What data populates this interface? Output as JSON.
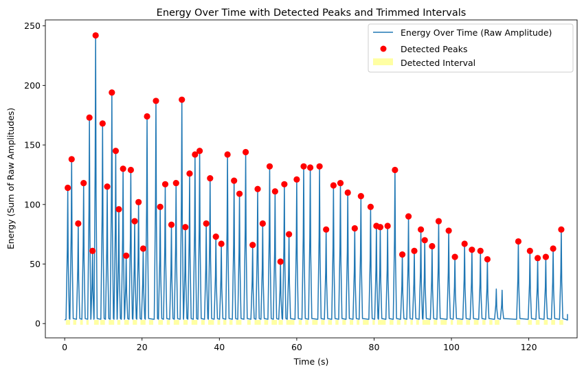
{
  "chart_data": {
    "type": "line",
    "title": "Energy Over Time with Detected Peaks and Trimmed Intervals",
    "xlabel": "Time (s)",
    "ylabel": "Energy (Sum of Raw Amplitudes)",
    "xlim": [
      -5,
      132.5
    ],
    "ylim": [
      -12,
      255
    ],
    "xticks": [
      0,
      20,
      40,
      60,
      80,
      100,
      120
    ],
    "yticks": [
      0,
      50,
      100,
      150,
      200,
      250
    ],
    "grid": false,
    "legend_position": "top-right",
    "colors": {
      "line": "#1f77b4",
      "peaks": "#ff0000",
      "interval": "#ffff99"
    },
    "series": [
      {
        "name": "Energy Over Time (Raw Amplitude)",
        "type": "line",
        "baseline": 3,
        "peaks": [
          [
            0.8,
            114
          ],
          [
            1.8,
            138
          ],
          [
            3.5,
            84
          ],
          [
            4.9,
            118
          ],
          [
            6.4,
            173
          ],
          [
            7.2,
            61
          ],
          [
            8.0,
            242
          ],
          [
            9.8,
            168
          ],
          [
            11.0,
            115
          ],
          [
            12.2,
            194
          ],
          [
            13.2,
            145
          ],
          [
            14.0,
            96
          ],
          [
            15.1,
            130
          ],
          [
            15.9,
            57
          ],
          [
            17.1,
            129
          ],
          [
            18.1,
            86
          ],
          [
            19.1,
            102
          ],
          [
            20.3,
            63
          ],
          [
            21.3,
            174
          ],
          [
            23.6,
            187
          ],
          [
            24.7,
            98
          ],
          [
            26.0,
            117
          ],
          [
            27.6,
            83
          ],
          [
            28.8,
            118
          ],
          [
            30.3,
            188
          ],
          [
            31.2,
            81
          ],
          [
            32.3,
            126
          ],
          [
            33.7,
            142
          ],
          [
            34.9,
            145
          ],
          [
            36.6,
            84
          ],
          [
            37.6,
            122
          ],
          [
            39.1,
            73
          ],
          [
            40.5,
            67
          ],
          [
            42.1,
            142
          ],
          [
            43.8,
            120
          ],
          [
            45.2,
            109
          ],
          [
            46.8,
            144
          ],
          [
            48.6,
            66
          ],
          [
            49.9,
            113
          ],
          [
            51.2,
            84
          ],
          [
            53.0,
            132
          ],
          [
            54.4,
            111
          ],
          [
            55.8,
            52
          ],
          [
            56.8,
            117
          ],
          [
            58.0,
            75
          ],
          [
            60.0,
            121
          ],
          [
            61.8,
            132
          ],
          [
            63.5,
            131
          ],
          [
            65.9,
            132
          ],
          [
            67.6,
            79
          ],
          [
            69.5,
            116
          ],
          [
            71.3,
            118
          ],
          [
            73.2,
            110
          ],
          [
            75.0,
            80
          ],
          [
            76.6,
            107
          ],
          [
            79.1,
            98
          ],
          [
            80.6,
            82
          ],
          [
            81.6,
            81
          ],
          [
            83.5,
            82
          ],
          [
            85.4,
            129
          ],
          [
            87.3,
            58
          ],
          [
            88.9,
            90
          ],
          [
            90.4,
            61
          ],
          [
            92.1,
            79
          ],
          [
            93.1,
            70
          ],
          [
            95.0,
            65
          ],
          [
            96.7,
            86
          ],
          [
            99.3,
            78
          ],
          [
            100.9,
            56
          ],
          [
            103.4,
            67
          ],
          [
            105.3,
            62
          ],
          [
            107.5,
            61
          ],
          [
            109.3,
            54
          ],
          [
            111.6,
            29
          ],
          [
            113.1,
            28
          ],
          [
            117.3,
            69
          ],
          [
            120.3,
            61
          ],
          [
            122.3,
            55
          ],
          [
            124.4,
            56
          ],
          [
            126.3,
            63
          ],
          [
            128.4,
            79
          ]
        ]
      },
      {
        "name": "Detected Peaks",
        "type": "scatter",
        "points": [
          [
            0.8,
            114
          ],
          [
            1.8,
            138
          ],
          [
            3.5,
            84
          ],
          [
            4.9,
            118
          ],
          [
            6.4,
            173
          ],
          [
            7.2,
            61
          ],
          [
            8.0,
            242
          ],
          [
            9.8,
            168
          ],
          [
            11.0,
            115
          ],
          [
            12.2,
            194
          ],
          [
            13.2,
            145
          ],
          [
            14.0,
            96
          ],
          [
            15.1,
            130
          ],
          [
            15.9,
            57
          ],
          [
            17.1,
            129
          ],
          [
            18.1,
            86
          ],
          [
            19.1,
            102
          ],
          [
            20.3,
            63
          ],
          [
            21.3,
            174
          ],
          [
            23.6,
            187
          ],
          [
            24.7,
            98
          ],
          [
            26.0,
            117
          ],
          [
            27.6,
            83
          ],
          [
            28.8,
            118
          ],
          [
            30.3,
            188
          ],
          [
            31.2,
            81
          ],
          [
            32.3,
            126
          ],
          [
            33.7,
            142
          ],
          [
            34.9,
            145
          ],
          [
            36.6,
            84
          ],
          [
            37.6,
            122
          ],
          [
            39.1,
            73
          ],
          [
            40.5,
            67
          ],
          [
            42.1,
            142
          ],
          [
            43.8,
            120
          ],
          [
            45.2,
            109
          ],
          [
            46.8,
            144
          ],
          [
            48.6,
            66
          ],
          [
            49.9,
            113
          ],
          [
            51.2,
            84
          ],
          [
            53.0,
            132
          ],
          [
            54.4,
            111
          ],
          [
            55.8,
            52
          ],
          [
            56.8,
            117
          ],
          [
            58.0,
            75
          ],
          [
            60.0,
            121
          ],
          [
            61.8,
            132
          ],
          [
            63.5,
            131
          ],
          [
            65.9,
            132
          ],
          [
            67.6,
            79
          ],
          [
            69.5,
            116
          ],
          [
            71.3,
            118
          ],
          [
            73.2,
            110
          ],
          [
            75.0,
            80
          ],
          [
            76.6,
            107
          ],
          [
            79.1,
            98
          ],
          [
            80.6,
            82
          ],
          [
            81.6,
            81
          ],
          [
            83.5,
            82
          ],
          [
            85.4,
            129
          ],
          [
            87.3,
            58
          ],
          [
            88.9,
            90
          ],
          [
            90.4,
            61
          ],
          [
            92.1,
            79
          ],
          [
            93.1,
            70
          ],
          [
            95.0,
            65
          ],
          [
            96.7,
            86
          ],
          [
            99.3,
            78
          ],
          [
            100.9,
            56
          ],
          [
            103.4,
            67
          ],
          [
            105.3,
            62
          ],
          [
            107.5,
            61
          ],
          [
            109.3,
            54
          ],
          [
            117.3,
            69
          ],
          [
            120.3,
            61
          ],
          [
            122.3,
            55
          ],
          [
            124.4,
            56
          ],
          [
            126.3,
            63
          ],
          [
            128.4,
            79
          ]
        ]
      },
      {
        "name": "Detected Interval",
        "type": "area",
        "intervals": [
          [
            0.3,
            1.4
          ],
          [
            2.2,
            3.0
          ],
          [
            4.0,
            4.7
          ],
          [
            5.6,
            6.2
          ],
          [
            7.6,
            8.8
          ],
          [
            9.2,
            10.4
          ],
          [
            11.4,
            12.8
          ],
          [
            13.6,
            14.4
          ],
          [
            15.4,
            16.6
          ],
          [
            17.6,
            18.7
          ],
          [
            19.6,
            20.9
          ],
          [
            21.8,
            22.9
          ],
          [
            24.2,
            25.4
          ],
          [
            26.4,
            27.2
          ],
          [
            28.2,
            29.6
          ],
          [
            30.7,
            31.8
          ],
          [
            32.8,
            34.3
          ],
          [
            35.3,
            36.2
          ],
          [
            37.1,
            38.6
          ],
          [
            39.5,
            40.2
          ],
          [
            41.0,
            41.8
          ],
          [
            42.6,
            43.4
          ],
          [
            44.3,
            45.7
          ],
          [
            47.2,
            48.1
          ],
          [
            49.1,
            50.7
          ],
          [
            51.6,
            52.6
          ],
          [
            53.5,
            54.9
          ],
          [
            55.3,
            56.4
          ],
          [
            57.3,
            59.4
          ],
          [
            60.5,
            61.3
          ],
          [
            62.2,
            63.0
          ],
          [
            64.0,
            65.4
          ],
          [
            66.3,
            67.2
          ],
          [
            68.1,
            69.1
          ],
          [
            70.0,
            70.8
          ],
          [
            71.8,
            72.7
          ],
          [
            73.7,
            74.6
          ],
          [
            75.5,
            76.2
          ],
          [
            77.1,
            78.6
          ],
          [
            79.6,
            80.2
          ],
          [
            81.0,
            83.0
          ],
          [
            84.0,
            85.0
          ],
          [
            85.9,
            86.8
          ],
          [
            87.8,
            88.4
          ],
          [
            89.4,
            90.0
          ],
          [
            90.9,
            91.6
          ],
          [
            92.5,
            94.5
          ],
          [
            95.4,
            96.3
          ],
          [
            97.2,
            98.8
          ],
          [
            99.8,
            100.4
          ],
          [
            101.4,
            102.9
          ],
          [
            103.8,
            104.8
          ],
          [
            105.8,
            107.0
          ],
          [
            108.0,
            108.8
          ],
          [
            109.8,
            110.6
          ],
          [
            111.2,
            112.4
          ],
          [
            116.8,
            117.8
          ],
          [
            119.8,
            120.8
          ],
          [
            121.8,
            122.8
          ],
          [
            123.9,
            124.9
          ],
          [
            125.8,
            126.8
          ],
          [
            127.9,
            128.9
          ]
        ]
      }
    ]
  }
}
